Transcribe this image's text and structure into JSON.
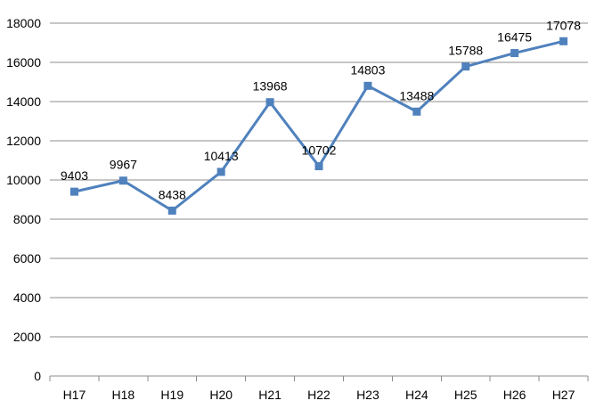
{
  "chart_data": {
    "type": "line",
    "categories": [
      "H17",
      "H18",
      "H19",
      "H20",
      "H21",
      "H22",
      "H23",
      "H24",
      "H25",
      "H26",
      "H27"
    ],
    "series": [
      {
        "values": [
          9403,
          9967,
          8438,
          10413,
          13968,
          10702,
          14803,
          13488,
          15788,
          16475,
          17078
        ],
        "color": "#4f81bd",
        "marker": "square"
      }
    ],
    "data_labels": [
      "9403",
      "9967",
      "8438",
      "10413",
      "13968",
      "10702",
      "14803",
      "13488",
      "15788",
      "16475",
      "17078"
    ],
    "y_ticks": [
      "0",
      "2000",
      "4000",
      "6000",
      "8000",
      "10000",
      "12000",
      "14000",
      "16000",
      "18000"
    ],
    "ylim": [
      0,
      18000
    ],
    "grid": "horizontal",
    "legend": "none",
    "colors": {
      "series": "#4f81bd",
      "grid": "#8c8c8c",
      "text": "#000000"
    }
  }
}
